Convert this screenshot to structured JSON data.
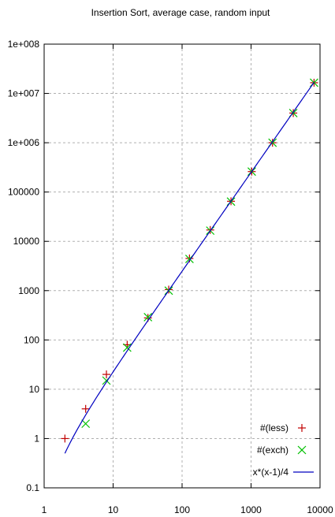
{
  "chart_data": {
    "type": "scatter",
    "title": "Insertion Sort, average case, random input",
    "xlabel": "",
    "ylabel": "",
    "x_scale": "log",
    "y_scale": "log",
    "xlim": [
      1,
      10000
    ],
    "ylim": [
      0.1,
      100000000
    ],
    "x_ticks": [
      "1",
      "10",
      "100",
      "1000",
      "10000"
    ],
    "y_ticks": [
      "0.1",
      "1",
      "10",
      "100",
      "1000",
      "10000",
      "100000",
      "1e+006",
      "1e+007",
      "1e+008"
    ],
    "grid": true,
    "legend_position": "bottom-right",
    "series": [
      {
        "name": "#(less)",
        "marker": "plus",
        "color": "#c00000",
        "x": [
          2,
          4,
          8,
          16,
          32,
          64,
          128,
          256,
          512,
          1024,
          2048,
          4096,
          8192
        ],
        "y": [
          1,
          4,
          20,
          80,
          280,
          1050,
          4500,
          17000,
          65000,
          260000,
          1000000,
          4000000,
          16500000
        ]
      },
      {
        "name": "#(exch)",
        "marker": "cross",
        "color": "#00c000",
        "x": [
          4,
          8,
          16,
          32,
          64,
          128,
          256,
          512,
          1024,
          2048,
          4096,
          8192
        ],
        "y": [
          2,
          15,
          70,
          290,
          1000,
          4400,
          16500,
          64000,
          260000,
          1000000,
          4000000,
          16500000
        ]
      },
      {
        "name": "x*(x-1)/4",
        "marker": "line",
        "color": "#0000c0",
        "function": "x*(x-1)/4",
        "x_range": [
          2,
          8192
        ]
      }
    ]
  }
}
